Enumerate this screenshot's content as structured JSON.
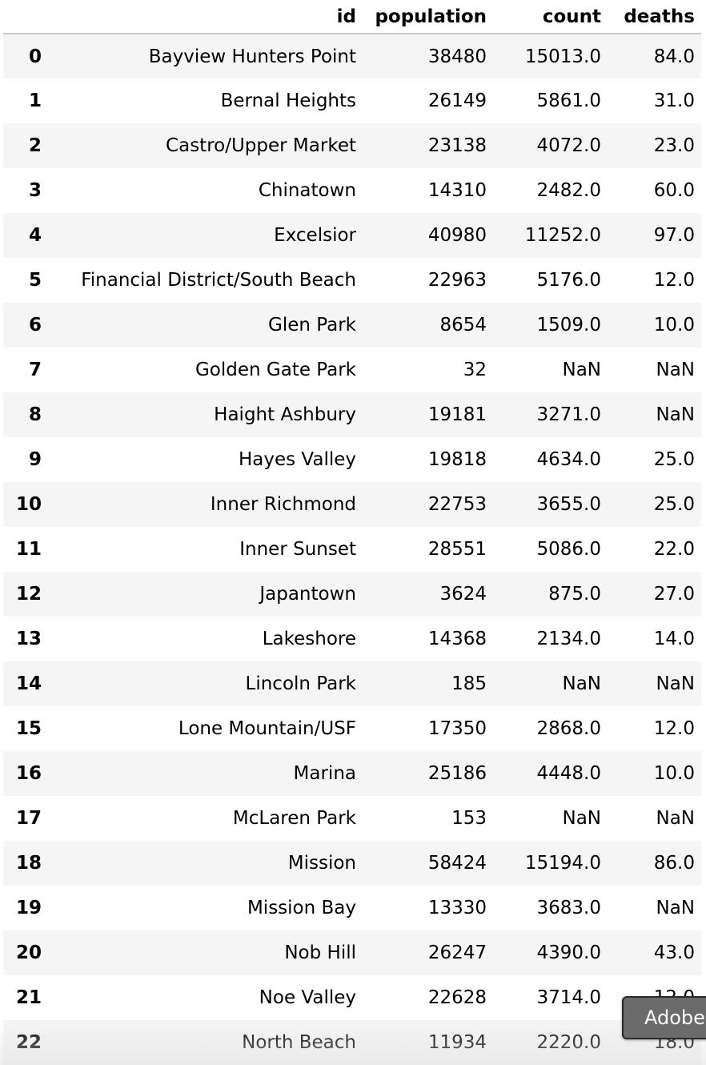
{
  "table": {
    "columns": [
      "id",
      "population",
      "count",
      "deaths"
    ],
    "rows": [
      {
        "index": "0",
        "id": "Bayview Hunters Point",
        "population": "38480",
        "count": "15013.0",
        "deaths": "84.0"
      },
      {
        "index": "1",
        "id": "Bernal Heights",
        "population": "26149",
        "count": "5861.0",
        "deaths": "31.0"
      },
      {
        "index": "2",
        "id": "Castro/Upper Market",
        "population": "23138",
        "count": "4072.0",
        "deaths": "23.0"
      },
      {
        "index": "3",
        "id": "Chinatown",
        "population": "14310",
        "count": "2482.0",
        "deaths": "60.0"
      },
      {
        "index": "4",
        "id": "Excelsior",
        "population": "40980",
        "count": "11252.0",
        "deaths": "97.0"
      },
      {
        "index": "5",
        "id": "Financial District/South Beach",
        "population": "22963",
        "count": "5176.0",
        "deaths": "12.0"
      },
      {
        "index": "6",
        "id": "Glen Park",
        "population": "8654",
        "count": "1509.0",
        "deaths": "10.0"
      },
      {
        "index": "7",
        "id": "Golden Gate Park",
        "population": "32",
        "count": "NaN",
        "deaths": "NaN"
      },
      {
        "index": "8",
        "id": "Haight Ashbury",
        "population": "19181",
        "count": "3271.0",
        "deaths": "NaN"
      },
      {
        "index": "9",
        "id": "Hayes Valley",
        "population": "19818",
        "count": "4634.0",
        "deaths": "25.0"
      },
      {
        "index": "10",
        "id": "Inner Richmond",
        "population": "22753",
        "count": "3655.0",
        "deaths": "25.0"
      },
      {
        "index": "11",
        "id": "Inner Sunset",
        "population": "28551",
        "count": "5086.0",
        "deaths": "22.0"
      },
      {
        "index": "12",
        "id": "Japantown",
        "population": "3624",
        "count": "875.0",
        "deaths": "27.0"
      },
      {
        "index": "13",
        "id": "Lakeshore",
        "population": "14368",
        "count": "2134.0",
        "deaths": "14.0"
      },
      {
        "index": "14",
        "id": "Lincoln Park",
        "population": "185",
        "count": "NaN",
        "deaths": "NaN"
      },
      {
        "index": "15",
        "id": "Lone Mountain/USF",
        "population": "17350",
        "count": "2868.0",
        "deaths": "12.0"
      },
      {
        "index": "16",
        "id": "Marina",
        "population": "25186",
        "count": "4448.0",
        "deaths": "10.0"
      },
      {
        "index": "17",
        "id": "McLaren Park",
        "population": "153",
        "count": "NaN",
        "deaths": "NaN"
      },
      {
        "index": "18",
        "id": "Mission",
        "population": "58424",
        "count": "15194.0",
        "deaths": "86.0"
      },
      {
        "index": "19",
        "id": "Mission Bay",
        "population": "13330",
        "count": "3683.0",
        "deaths": "NaN"
      },
      {
        "index": "20",
        "id": "Nob Hill",
        "population": "26247",
        "count": "4390.0",
        "deaths": "43.0"
      },
      {
        "index": "21",
        "id": "Noe Valley",
        "population": "22628",
        "count": "3714.0",
        "deaths": "12.0"
      },
      {
        "index": "22",
        "id": "North Beach",
        "population": "11934",
        "count": "2220.0",
        "deaths": "18.0"
      }
    ]
  },
  "overlay": {
    "button_label": "Adobe"
  }
}
